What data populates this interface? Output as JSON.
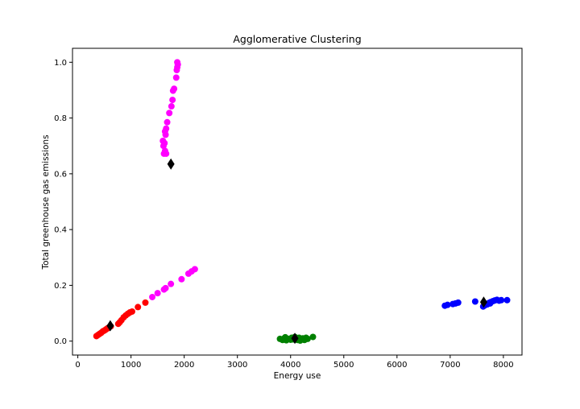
{
  "chart_data": {
    "type": "scatter",
    "title": "Agglomerative Clustering",
    "xlabel": "Energy use",
    "ylabel": "Total greenhouse gas emissions",
    "xlim": [
      -100,
      8350
    ],
    "ylim": [
      -0.05,
      1.05
    ],
    "xticks": [
      0,
      1000,
      2000,
      3000,
      4000,
      5000,
      6000,
      7000,
      8000
    ],
    "xtick_labels": [
      "0",
      "1000",
      "2000",
      "3000",
      "4000",
      "5000",
      "6000",
      "7000",
      "8000"
    ],
    "yticks": [
      0.0,
      0.2,
      0.4,
      0.6,
      0.8,
      1.0
    ],
    "ytick_labels": [
      "0.0",
      "0.2",
      "0.4",
      "0.6",
      "0.8",
      "1.0"
    ],
    "grid": false,
    "legend": "none",
    "series": [
      {
        "color": "#ff00ff",
        "marker": "circle",
        "points": [
          [
            1620,
            0.672
          ],
          [
            1660,
            0.672
          ],
          [
            1640,
            0.682
          ],
          [
            1610,
            0.7
          ],
          [
            1630,
            0.71
          ],
          [
            1600,
            0.718
          ],
          [
            1650,
            0.74
          ],
          [
            1640,
            0.752
          ],
          [
            1660,
            0.762
          ],
          [
            1680,
            0.785
          ],
          [
            1720,
            0.818
          ],
          [
            1760,
            0.842
          ],
          [
            1780,
            0.865
          ],
          [
            1790,
            0.898
          ],
          [
            1810,
            0.905
          ],
          [
            1850,
            0.945
          ],
          [
            1860,
            0.972
          ],
          [
            1870,
            0.982
          ],
          [
            1880,
            0.992
          ],
          [
            1870,
            1.0
          ],
          [
            1400,
            0.158
          ],
          [
            1500,
            0.172
          ],
          [
            1620,
            0.185
          ],
          [
            1650,
            0.19
          ],
          [
            1750,
            0.205
          ],
          [
            1950,
            0.222
          ],
          [
            2080,
            0.242
          ],
          [
            2140,
            0.25
          ],
          [
            2200,
            0.258
          ]
        ]
      },
      {
        "color": "#ff0000",
        "marker": "circle",
        "points": [
          [
            350,
            0.018
          ],
          [
            380,
            0.022
          ],
          [
            410,
            0.026
          ],
          [
            440,
            0.03
          ],
          [
            470,
            0.035
          ],
          [
            500,
            0.038
          ],
          [
            530,
            0.042
          ],
          [
            560,
            0.046
          ],
          [
            590,
            0.05
          ],
          [
            620,
            0.053
          ],
          [
            760,
            0.062
          ],
          [
            790,
            0.068
          ],
          [
            820,
            0.075
          ],
          [
            860,
            0.085
          ],
          [
            900,
            0.092
          ],
          [
            940,
            0.098
          ],
          [
            980,
            0.103
          ],
          [
            1020,
            0.106
          ],
          [
            1130,
            0.122
          ],
          [
            1270,
            0.138
          ]
        ]
      },
      {
        "color": "#008000",
        "marker": "circle",
        "points": [
          [
            3800,
            0.008
          ],
          [
            3850,
            0.004
          ],
          [
            3880,
            0.01
          ],
          [
            3920,
            0.003
          ],
          [
            3960,
            0.008
          ],
          [
            4000,
            0.005
          ],
          [
            4020,
            0.012
          ],
          [
            4050,
            0.006
          ],
          [
            4100,
            0.01
          ],
          [
            4130,
            0.004
          ],
          [
            4160,
            0.012
          ],
          [
            4200,
            0.006
          ],
          [
            4230,
            0.01
          ],
          [
            4260,
            0.004
          ],
          [
            4290,
            0.012
          ],
          [
            4320,
            0.008
          ],
          [
            4420,
            0.015
          ],
          [
            3900,
            0.014
          ],
          [
            4080,
            0.015
          ],
          [
            4180,
            0.002
          ]
        ]
      },
      {
        "color": "#0000ff",
        "marker": "circle",
        "points": [
          [
            6900,
            0.127
          ],
          [
            6950,
            0.13
          ],
          [
            7050,
            0.133
          ],
          [
            7100,
            0.135
          ],
          [
            7150,
            0.138
          ],
          [
            7470,
            0.142
          ],
          [
            7620,
            0.124
          ],
          [
            7650,
            0.128
          ],
          [
            7700,
            0.132
          ],
          [
            7730,
            0.137
          ],
          [
            7760,
            0.14
          ],
          [
            7800,
            0.143
          ],
          [
            7840,
            0.146
          ],
          [
            7880,
            0.148
          ],
          [
            7920,
            0.145
          ],
          [
            7960,
            0.147
          ],
          [
            8070,
            0.147
          ],
          [
            7750,
            0.135
          ]
        ]
      }
    ],
    "centroids": {
      "color": "#000000",
      "marker": "diamond",
      "points": [
        [
          1750,
          0.635
        ],
        [
          610,
          0.055
        ],
        [
          4080,
          0.01
        ],
        [
          7630,
          0.14
        ]
      ]
    }
  }
}
